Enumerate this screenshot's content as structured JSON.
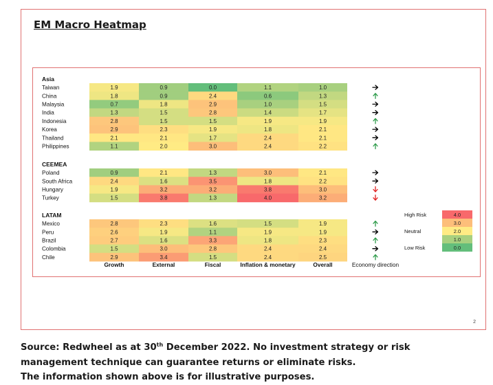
{
  "slide": {
    "title": "EM Macro Heatmap",
    "page_number": "2"
  },
  "chart_data": {
    "type": "heatmap",
    "title": "",
    "columns": [
      "Growth",
      "External",
      "Fiscal",
      "Inflation & monetary",
      "Overall"
    ],
    "direction_column_label": "Economy direction",
    "groups": [
      {
        "name": "Asia",
        "rows": [
          {
            "country": "Taiwan",
            "values": [
              1.9,
              0.9,
              0.0,
              1.1,
              1.0
            ],
            "direction": "right"
          },
          {
            "country": "China",
            "values": [
              1.8,
              0.9,
              2.4,
              0.6,
              1.3
            ],
            "direction": "up"
          },
          {
            "country": "Malaysia",
            "values": [
              0.7,
              1.8,
              2.9,
              1.0,
              1.5
            ],
            "direction": "right"
          },
          {
            "country": "India",
            "values": [
              1.3,
              1.5,
              2.8,
              1.4,
              1.7
            ],
            "direction": "right"
          },
          {
            "country": "Indonesia",
            "values": [
              2.8,
              1.5,
              1.5,
              1.9,
              1.9
            ],
            "direction": "up"
          },
          {
            "country": "Korea",
            "values": [
              2.9,
              2.3,
              1.9,
              1.8,
              2.1
            ],
            "direction": "right"
          },
          {
            "country": "Thailand",
            "values": [
              2.1,
              2.1,
              1.7,
              2.4,
              2.1
            ],
            "direction": "right"
          },
          {
            "country": "Philippines",
            "values": [
              1.1,
              2.0,
              3.0,
              2.4,
              2.2
            ],
            "direction": "up"
          }
        ]
      },
      {
        "name": "CEEMEA",
        "rows": [
          {
            "country": "Poland",
            "values": [
              0.9,
              2.1,
              1.3,
              3.0,
              2.1
            ],
            "direction": "right"
          },
          {
            "country": "South Africa",
            "values": [
              2.4,
              1.6,
              3.5,
              1.8,
              2.2
            ],
            "direction": "right"
          },
          {
            "country": "Hungary",
            "values": [
              1.9,
              3.2,
              3.2,
              3.8,
              3.0
            ],
            "direction": "down"
          },
          {
            "country": "Turkey",
            "values": [
              1.5,
              3.8,
              1.3,
              4.0,
              3.2
            ],
            "direction": "down"
          }
        ]
      },
      {
        "name": "LATAM",
        "rows": [
          {
            "country": "Mexico",
            "values": [
              2.8,
              2.3,
              1.6,
              1.5,
              1.9
            ],
            "direction": "up"
          },
          {
            "country": "Peru",
            "values": [
              2.6,
              1.9,
              1.1,
              1.9,
              1.9
            ],
            "direction": "right"
          },
          {
            "country": "Brazil",
            "values": [
              2.7,
              1.6,
              3.3,
              1.8,
              2.3
            ],
            "direction": "up"
          },
          {
            "country": "Colombia",
            "values": [
              1.5,
              3.0,
              2.8,
              2.4,
              2.4
            ],
            "direction": "right"
          },
          {
            "country": "Chile",
            "values": [
              2.9,
              3.4,
              1.5,
              2.4,
              2.5
            ],
            "direction": "up"
          }
        ]
      }
    ],
    "legend": {
      "placement": "right",
      "entries": [
        {
          "label": "High Risk",
          "value": "4.0"
        },
        {
          "label": "",
          "value": "3.0"
        },
        {
          "label": "Neutral",
          "value": "2.0"
        },
        {
          "label": "",
          "value": "1.0"
        },
        {
          "label": "Low Risk",
          "value": "0.0"
        }
      ]
    },
    "color_scale": [
      "#63be7b",
      "#a8d07f",
      "#ffeb84",
      "#fdbe7a",
      "#f8696b"
    ],
    "arrow_colors": {
      "up": "#2e9b4a",
      "down": "#e02020",
      "right": "#000000"
    }
  },
  "footer": {
    "line1_before": "Source: Redwheel as at 30",
    "line1_sup": "th",
    "line1_after": " December 2022. No investment strategy or risk",
    "line2": "management technique can guarantee returns or eliminate risks.",
    "line3": "The information shown above is for illustrative purposes."
  }
}
